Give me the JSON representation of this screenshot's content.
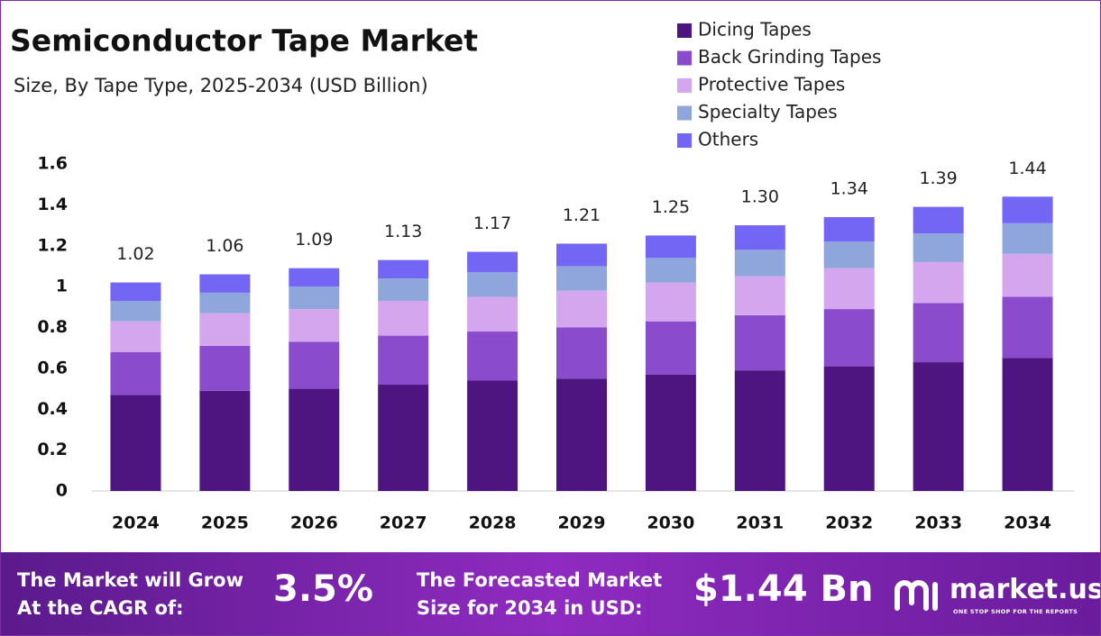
{
  "chart_data": {
    "type": "stacked-bar",
    "title": "Semiconductor Tape Market",
    "subtitle": "Size, By Tape Type, 2025-2034 (USD Billion)",
    "categories": [
      "2024",
      "2025",
      "2026",
      "2027",
      "2028",
      "2029",
      "2030",
      "2031",
      "2032",
      "2033",
      "2034"
    ],
    "series": [
      {
        "name": "Dicing Tapes",
        "color": "#4e1580",
        "values": [
          0.47,
          0.49,
          0.5,
          0.52,
          0.54,
          0.55,
          0.57,
          0.59,
          0.61,
          0.63,
          0.65
        ]
      },
      {
        "name": "Back Grinding Tapes",
        "color": "#8a4ccc",
        "values": [
          0.21,
          0.22,
          0.23,
          0.24,
          0.24,
          0.25,
          0.26,
          0.27,
          0.28,
          0.29,
          0.3
        ]
      },
      {
        "name": "Protective Tapes",
        "color": "#d4a6ee",
        "values": [
          0.15,
          0.16,
          0.16,
          0.17,
          0.17,
          0.18,
          0.19,
          0.19,
          0.2,
          0.2,
          0.21
        ]
      },
      {
        "name": "Specialty Tapes",
        "color": "#8fa6dc",
        "values": [
          0.1,
          0.1,
          0.11,
          0.11,
          0.12,
          0.12,
          0.12,
          0.13,
          0.13,
          0.14,
          0.15
        ]
      },
      {
        "name": "Others",
        "color": "#7366f5",
        "values": [
          0.09,
          0.09,
          0.09,
          0.09,
          0.1,
          0.11,
          0.11,
          0.12,
          0.12,
          0.13,
          0.13
        ]
      }
    ],
    "totals": {
      "values": [
        1.02,
        1.06,
        1.09,
        1.13,
        1.17,
        1.21,
        1.25,
        1.3,
        1.34,
        1.39,
        1.44
      ],
      "value_labels": [
        "1.02",
        "1.06",
        "1.09",
        "1.13",
        "1.17",
        "1.21",
        "1.25",
        "1.30",
        "1.34",
        "1.39",
        "1.44"
      ]
    },
    "ylim": [
      0,
      1.6
    ],
    "yticks": [
      0,
      0.2,
      0.4,
      0.6,
      0.8,
      1,
      1.2,
      1.4,
      1.6
    ],
    "grid": false
  },
  "footer": {
    "cagr_label": "The Market will Grow At the CAGR of:",
    "cagr_value": "3.5%",
    "forecast_label": "The Forecasted Market Size for 2034 in USD:",
    "forecast_value": "$1.44 Bn",
    "brand": "market.us",
    "tagline": "ONE STOP SHOP FOR THE REPORTS"
  }
}
